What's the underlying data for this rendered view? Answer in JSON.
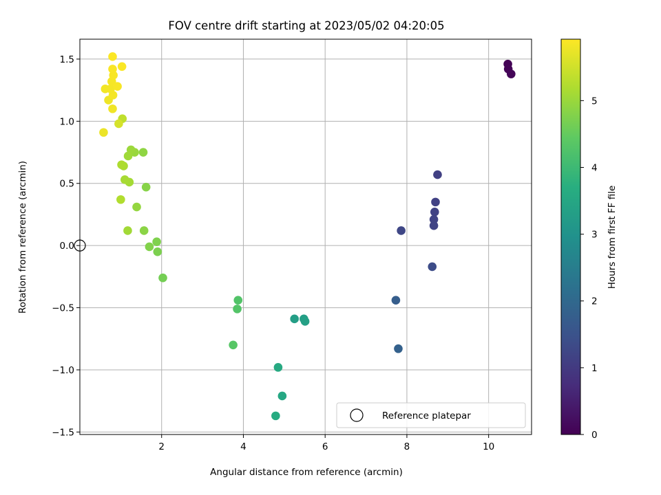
{
  "chart_data": {
    "type": "scatter",
    "title": "FOV centre drift starting at 2023/05/02 04:20:05",
    "xlabel": "Angular distance from reference (arcmin)",
    "ylabel": "Rotation from reference (arcmin)",
    "xlim": [
      0,
      11.05
    ],
    "ylim": [
      -1.52,
      1.66
    ],
    "x_ticks": [
      2,
      4,
      6,
      8,
      10
    ],
    "x_tick_labels": [
      "2",
      "4",
      "6",
      "8",
      "10"
    ],
    "y_ticks": [
      -1.5,
      -1.0,
      -0.5,
      0.0,
      0.5,
      1.0,
      1.5
    ],
    "y_tick_labels": [
      "−1.5",
      "−1.0",
      "−0.5",
      "0.0",
      "0.5",
      "1.0",
      "1.5"
    ],
    "grid": true,
    "colorbar": {
      "label": "Hours from first FF file",
      "range": [
        0,
        5.92
      ],
      "ticks": [
        0,
        1,
        2,
        3,
        4,
        5
      ],
      "tick_labels": [
        "0",
        "1",
        "2",
        "3",
        "4",
        "5"
      ],
      "colormap": "viridis"
    },
    "legend": {
      "placement": "lower-right",
      "entries": [
        {
          "label": "Reference platepar",
          "marker": "open-circle",
          "x": 0.0,
          "y": 0.0
        }
      ]
    },
    "series": [
      {
        "marker": "filled-circle",
        "points": [
          {
            "x": 10.47,
            "y": 1.46,
            "h": 0.03
          },
          {
            "x": 10.48,
            "y": 1.42,
            "h": 0.05
          },
          {
            "x": 10.55,
            "y": 1.38,
            "h": 0.08
          },
          {
            "x": 8.75,
            "y": 0.57,
            "h": 1.12
          },
          {
            "x": 8.7,
            "y": 0.35,
            "h": 1.14
          },
          {
            "x": 8.68,
            "y": 0.27,
            "h": 1.16
          },
          {
            "x": 8.66,
            "y": 0.21,
            "h": 1.18
          },
          {
            "x": 8.66,
            "y": 0.16,
            "h": 1.2
          },
          {
            "x": 7.86,
            "y": 0.12,
            "h": 1.25
          },
          {
            "x": 8.62,
            "y": -0.17,
            "h": 1.35
          },
          {
            "x": 7.73,
            "y": -0.44,
            "h": 1.75
          },
          {
            "x": 7.79,
            "y": -0.83,
            "h": 1.82
          },
          {
            "x": 5.25,
            "y": -0.59,
            "h": 3.3
          },
          {
            "x": 5.48,
            "y": -0.59,
            "h": 3.32
          },
          {
            "x": 5.51,
            "y": -0.61,
            "h": 3.34
          },
          {
            "x": 4.95,
            "y": -1.21,
            "h": 3.52
          },
          {
            "x": 4.85,
            "y": -0.98,
            "h": 3.58
          },
          {
            "x": 4.79,
            "y": -1.37,
            "h": 3.62
          },
          {
            "x": 3.87,
            "y": -0.44,
            "h": 4.28
          },
          {
            "x": 3.85,
            "y": -0.51,
            "h": 4.3
          },
          {
            "x": 3.75,
            "y": -0.8,
            "h": 4.35
          },
          {
            "x": 2.03,
            "y": -0.26,
            "h": 4.65
          },
          {
            "x": 1.9,
            "y": -0.05,
            "h": 4.72
          },
          {
            "x": 1.88,
            "y": 0.03,
            "h": 4.75
          },
          {
            "x": 1.7,
            "y": -0.01,
            "h": 4.78
          },
          {
            "x": 1.62,
            "y": 0.47,
            "h": 4.82
          },
          {
            "x": 1.57,
            "y": 0.12,
            "h": 4.86
          },
          {
            "x": 1.55,
            "y": 0.75,
            "h": 4.9
          },
          {
            "x": 1.39,
            "y": 0.31,
            "h": 4.95
          },
          {
            "x": 1.34,
            "y": 0.75,
            "h": 4.98
          },
          {
            "x": 1.25,
            "y": 0.77,
            "h": 5.02
          },
          {
            "x": 1.18,
            "y": 0.72,
            "h": 5.05
          },
          {
            "x": 1.17,
            "y": 0.12,
            "h": 5.08
          },
          {
            "x": 1.21,
            "y": 0.51,
            "h": 5.1
          },
          {
            "x": 1.1,
            "y": 0.53,
            "h": 5.12
          },
          {
            "x": 1.07,
            "y": 0.64,
            "h": 5.15
          },
          {
            "x": 1.02,
            "y": 0.65,
            "h": 5.18
          },
          {
            "x": 1.0,
            "y": 0.37,
            "h": 5.22
          },
          {
            "x": 1.04,
            "y": 1.02,
            "h": 5.35
          },
          {
            "x": 0.95,
            "y": 0.98,
            "h": 5.55
          },
          {
            "x": 0.58,
            "y": 0.91,
            "h": 5.75
          },
          {
            "x": 0.7,
            "y": 1.17,
            "h": 5.78
          },
          {
            "x": 0.8,
            "y": 1.1,
            "h": 5.8
          },
          {
            "x": 0.62,
            "y": 1.26,
            "h": 5.82
          },
          {
            "x": 0.75,
            "y": 1.26,
            "h": 5.83
          },
          {
            "x": 0.81,
            "y": 1.21,
            "h": 5.84
          },
          {
            "x": 0.78,
            "y": 1.32,
            "h": 5.85
          },
          {
            "x": 0.92,
            "y": 1.28,
            "h": 5.86
          },
          {
            "x": 0.82,
            "y": 1.37,
            "h": 5.87
          },
          {
            "x": 0.8,
            "y": 1.42,
            "h": 5.88
          },
          {
            "x": 1.03,
            "y": 1.44,
            "h": 5.89
          },
          {
            "x": 0.8,
            "y": 1.52,
            "h": 5.9
          }
        ]
      }
    ]
  }
}
